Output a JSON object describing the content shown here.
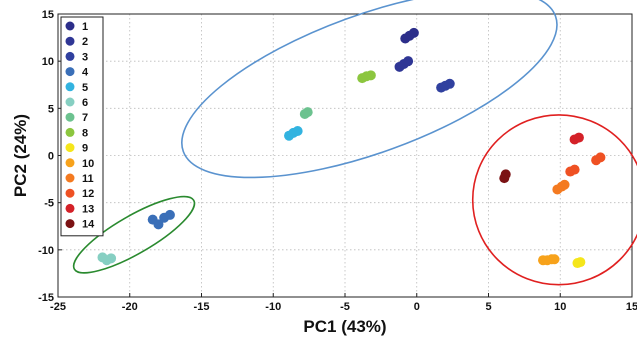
{
  "chart_data": {
    "type": "scatter",
    "xlabel": "PC1 (43%)",
    "ylabel": "PC2 (24%)",
    "xlim": [
      -25,
      15
    ],
    "ylim": [
      -15,
      15
    ],
    "x_ticks": [
      -25,
      -20,
      -15,
      -10,
      -5,
      0,
      5,
      10,
      15
    ],
    "y_ticks": [
      -15,
      -10,
      -5,
      0,
      5,
      10,
      15
    ],
    "grid": "dotted",
    "legend_position": "top-left",
    "series": [
      {
        "name": "1",
        "color": "#2c2e8a",
        "points": [
          [
            -0.8,
            12.4
          ],
          [
            -0.5,
            12.7
          ],
          [
            -0.2,
            13.0
          ]
        ]
      },
      {
        "name": "2",
        "color": "#2f3695",
        "points": [
          [
            -1.2,
            9.4
          ],
          [
            -0.9,
            9.7
          ],
          [
            -0.6,
            10.0
          ]
        ]
      },
      {
        "name": "3",
        "color": "#30409f",
        "points": [
          [
            1.7,
            7.2
          ],
          [
            2.0,
            7.4
          ],
          [
            2.3,
            7.6
          ]
        ]
      },
      {
        "name": "4",
        "color": "#3a6fb8",
        "points": [
          [
            -18.4,
            -6.8
          ],
          [
            -18.0,
            -7.3
          ],
          [
            -17.6,
            -6.6
          ],
          [
            -17.2,
            -6.3
          ]
        ]
      },
      {
        "name": "5",
        "color": "#32b3e0",
        "points": [
          [
            -8.9,
            2.1
          ],
          [
            -8.6,
            2.4
          ],
          [
            -8.3,
            2.6
          ]
        ]
      },
      {
        "name": "6",
        "color": "#86cfc2",
        "points": [
          [
            -21.9,
            -10.8
          ],
          [
            -21.6,
            -11.1
          ],
          [
            -21.3,
            -10.9
          ]
        ]
      },
      {
        "name": "7",
        "color": "#6cc28f",
        "points": [
          [
            -7.8,
            4.4
          ],
          [
            -7.6,
            4.6
          ]
        ]
      },
      {
        "name": "8",
        "color": "#8cc63f",
        "points": [
          [
            -3.8,
            8.2
          ],
          [
            -3.5,
            8.4
          ],
          [
            -3.2,
            8.5
          ]
        ]
      },
      {
        "name": "9",
        "color": "#f5e61b",
        "points": [
          [
            11.2,
            -11.4
          ],
          [
            11.4,
            -11.3
          ]
        ]
      },
      {
        "name": "10",
        "color": "#f7a21b",
        "points": [
          [
            8.8,
            -11.1
          ],
          [
            9.1,
            -11.1
          ],
          [
            9.4,
            -11.0
          ],
          [
            9.6,
            -11.0
          ]
        ]
      },
      {
        "name": "11",
        "color": "#f47a20",
        "points": [
          [
            9.8,
            -3.6
          ],
          [
            10.1,
            -3.3
          ],
          [
            10.3,
            -3.1
          ]
        ]
      },
      {
        "name": "12",
        "color": "#ef5123",
        "points": [
          [
            10.7,
            -1.7
          ],
          [
            11.0,
            -1.5
          ],
          [
            12.5,
            -0.5
          ],
          [
            12.8,
            -0.2
          ]
        ]
      },
      {
        "name": "13",
        "color": "#d42128",
        "points": [
          [
            11.0,
            1.7
          ],
          [
            11.3,
            1.9
          ]
        ]
      },
      {
        "name": "14",
        "color": "#7b1214",
        "points": [
          [
            6.1,
            -2.4
          ],
          [
            6.2,
            -2.0
          ]
        ]
      }
    ],
    "ellipses": [
      {
        "cluster": "green",
        "color": "#2a8a2f",
        "center": [
          -19.7,
          -8.4
        ],
        "rx": 4.8,
        "ry": 2.0,
        "angle_deg": 30
      },
      {
        "cluster": "blue",
        "color": "#5a93cf",
        "center": [
          -3.3,
          7.6
        ],
        "rx": 13.8,
        "ry": 7.3,
        "angle_deg": 20
      },
      {
        "cluster": "red",
        "color": "#e02020",
        "center": [
          9.9,
          -4.7
        ],
        "rx": 6.0,
        "ry": 9.0,
        "angle_deg": 0
      }
    ]
  }
}
